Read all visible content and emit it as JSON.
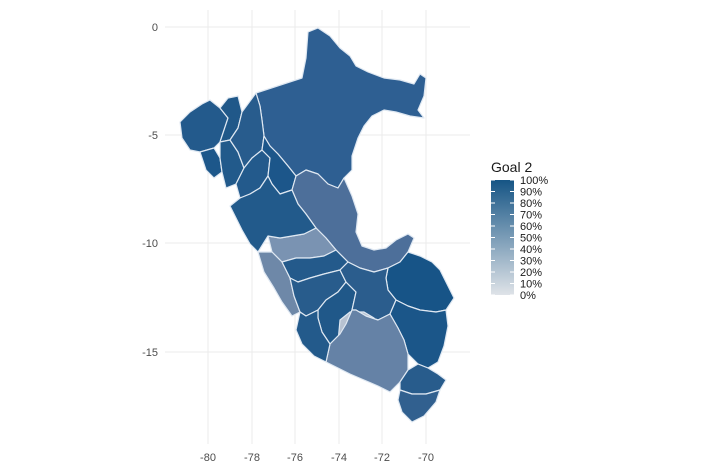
{
  "chart_data": {
    "type": "choropleth",
    "xticks": [
      "-80",
      "-78",
      "-76",
      "-74",
      "-72",
      "-70"
    ],
    "yticks": [
      "0",
      "-5",
      "-10",
      "-15"
    ],
    "legend": {
      "title": "Goal 2",
      "labels": [
        "100%",
        "90%",
        "80%",
        "70%",
        "60%",
        "50%",
        "40%",
        "30%",
        "20%",
        "10%",
        "0%"
      ],
      "color_low": "#dfe3e8",
      "color_high": "#165585"
    },
    "regions": [
      {
        "value": 0.85,
        "color": "#2e5f92"
      },
      {
        "value": 0.92,
        "color": "#235a8c"
      },
      {
        "value": 0.95,
        "color": "#1d578a"
      },
      {
        "value": 0.93,
        "color": "#205889"
      },
      {
        "value": 0.9,
        "color": "#225a8b"
      },
      {
        "value": 0.88,
        "color": "#285c8d"
      },
      {
        "value": 0.9,
        "color": "#235a8c"
      },
      {
        "value": 0.95,
        "color": "#1c568a"
      },
      {
        "value": 0.7,
        "color": "#4d6f9a"
      },
      {
        "value": 1.0,
        "color": "#175487"
      },
      {
        "value": 0.55,
        "color": "#7a93b2"
      },
      {
        "value": 0.6,
        "color": "#6e88a8"
      },
      {
        "value": 0.9,
        "color": "#245a8b"
      },
      {
        "value": 0.88,
        "color": "#285c8c"
      },
      {
        "value": 0.92,
        "color": "#205889"
      },
      {
        "value": 0.85,
        "color": "#2b5d8d"
      },
      {
        "value": 0.25,
        "color": "#b7c2d1"
      },
      {
        "value": 0.95,
        "color": "#1b5689"
      },
      {
        "value": 0.65,
        "color": "#6582a6"
      },
      {
        "value": 0.9,
        "color": "#235a8b"
      },
      {
        "value": 0.88,
        "color": "#285c8c"
      },
      {
        "value": 0.82,
        "color": "#31608f"
      },
      {
        "value": 0.9,
        "color": "#225a8b"
      }
    ]
  }
}
